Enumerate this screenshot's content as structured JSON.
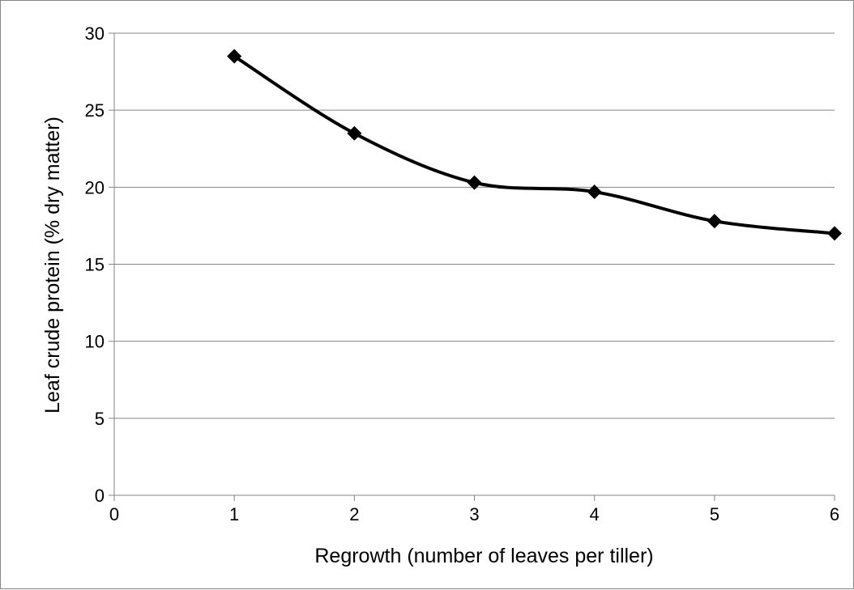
{
  "chart_data": {
    "type": "line",
    "title": "",
    "xlabel": "Regrowth (number of leaves per tiller)",
    "ylabel": "Leaf crude protein (% dry matter)",
    "xlim": [
      0,
      6
    ],
    "ylim": [
      0,
      30
    ],
    "x_ticks": [
      "0",
      "1",
      "2",
      "3",
      "4",
      "5",
      "6"
    ],
    "y_ticks": [
      "0",
      "5",
      "10",
      "15",
      "20",
      "25",
      "30"
    ],
    "grid": "horizontal",
    "legend": "none",
    "smoothed": true,
    "marker": "diamond",
    "series": [
      {
        "name": "",
        "color": "#000000",
        "x": [
          1,
          2,
          3,
          4,
          5,
          6
        ],
        "y": [
          28.5,
          23.5,
          20.3,
          19.7,
          17.8,
          17.0
        ]
      }
    ]
  }
}
